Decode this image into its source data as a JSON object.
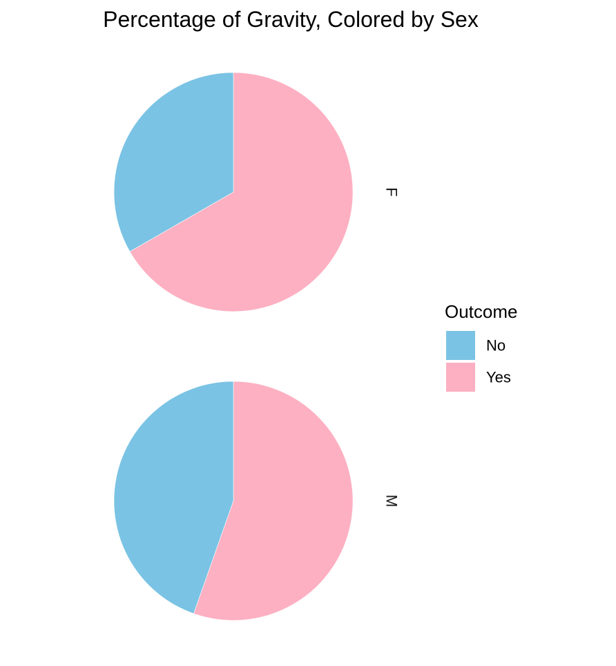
{
  "chart_data": {
    "type": "pie",
    "title": "Percentage of Gravity, Colored by Sex",
    "legend": {
      "title": "Outcome",
      "position": "right",
      "entries": [
        "No",
        "Yes"
      ]
    },
    "categories": [
      "No",
      "Yes"
    ],
    "colors": {
      "No": "#7AC3E4",
      "Yes": "#FDB0C2"
    },
    "facets": [
      {
        "label": "F",
        "values": [
          33.3,
          66.7
        ]
      },
      {
        "label": "M",
        "values": [
          44.6,
          55.4
        ]
      }
    ],
    "start_angle_deg": 0,
    "direction": "clockwise",
    "slice_order": "last-category-first",
    "grid": false
  }
}
